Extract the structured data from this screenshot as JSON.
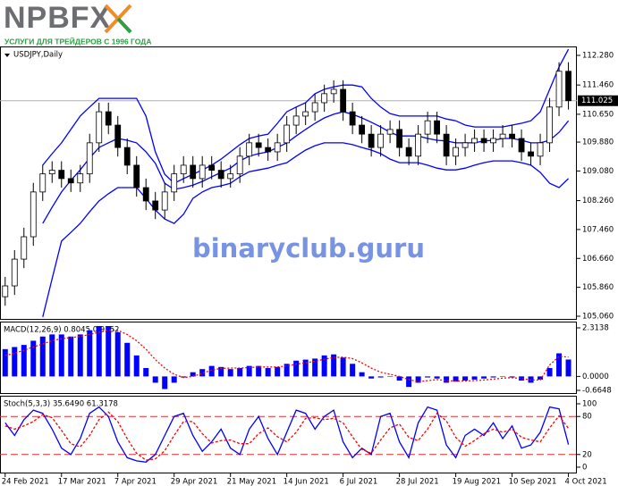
{
  "header": {
    "logo": "NPBFX",
    "tagline": "УСЛУГИ ДЛЯ ТРЕЙДЕРОВ С 1996 ГОДА"
  },
  "watermark": "binaryclub.guru",
  "chart_data": [
    {
      "type": "candlestick",
      "title": "USDJPY,Daily",
      "open": [
        105.6,
        105.9,
        106.64,
        107.26,
        108.5,
        109.0,
        109.1,
        108.87,
        108.75,
        109.0,
        109.86,
        110.72,
        110.35,
        109.73,
        109.24,
        108.62,
        108.25,
        108.0,
        108.5,
        109.0,
        109.24,
        108.87,
        109.24,
        109.1,
        108.87,
        109.0,
        109.49,
        109.86,
        109.73,
        109.61,
        109.86,
        110.35,
        110.6,
        110.72,
        110.97,
        111.22,
        111.34,
        110.72,
        110.35,
        110.1,
        109.73,
        110.1,
        110.23,
        109.73,
        109.49,
        110.1,
        110.47,
        110.1,
        109.49,
        109.73,
        109.86,
        109.98,
        109.86,
        109.98,
        110.1,
        109.98,
        109.61,
        109.49,
        109.86,
        110.85,
        111.84
      ],
      "high": [
        106.15,
        106.89,
        107.51,
        108.75,
        109.25,
        109.35,
        109.35,
        109.12,
        109.25,
        110.11,
        110.97,
        110.97,
        110.6,
        109.98,
        109.49,
        108.87,
        108.5,
        108.75,
        109.25,
        109.49,
        109.49,
        109.49,
        109.49,
        109.35,
        109.25,
        109.74,
        110.11,
        110.11,
        109.98,
        110.11,
        110.6,
        110.85,
        110.97,
        111.22,
        111.47,
        111.59,
        111.59,
        110.97,
        110.6,
        110.35,
        110.35,
        110.48,
        110.48,
        109.98,
        110.35,
        110.72,
        110.72,
        110.35,
        109.98,
        110.11,
        110.23,
        110.23,
        110.23,
        110.35,
        110.35,
        110.23,
        109.86,
        110.11,
        111.1,
        112.09,
        112.09
      ],
      "low": [
        105.35,
        105.65,
        106.39,
        107.01,
        108.25,
        108.75,
        108.62,
        108.5,
        108.5,
        108.75,
        109.61,
        110.1,
        109.48,
        108.99,
        108.37,
        108.0,
        107.75,
        107.75,
        108.25,
        108.75,
        108.62,
        108.62,
        108.85,
        108.62,
        108.62,
        108.75,
        109.24,
        109.48,
        109.36,
        109.36,
        109.61,
        110.1,
        110.35,
        110.47,
        110.72,
        110.97,
        110.47,
        110.1,
        109.85,
        109.48,
        109.48,
        109.85,
        109.48,
        109.24,
        109.24,
        109.85,
        109.85,
        109.24,
        109.24,
        109.48,
        109.61,
        109.61,
        109.61,
        109.73,
        109.73,
        109.36,
        109.24,
        109.24,
        109.61,
        110.6,
        110.78
      ],
      "close": [
        105.9,
        106.64,
        107.26,
        108.5,
        109.0,
        109.1,
        108.87,
        108.75,
        109.0,
        109.86,
        110.72,
        110.35,
        109.73,
        109.24,
        108.62,
        108.25,
        108.0,
        108.5,
        109.0,
        109.24,
        108.87,
        109.24,
        109.1,
        108.87,
        109.0,
        109.49,
        109.86,
        109.73,
        109.61,
        109.86,
        110.35,
        110.6,
        110.72,
        110.97,
        111.22,
        111.34,
        110.72,
        110.35,
        110.1,
        109.73,
        110.1,
        110.23,
        109.73,
        109.49,
        110.1,
        110.47,
        110.1,
        109.49,
        109.73,
        109.86,
        109.98,
        109.86,
        109.98,
        110.1,
        109.98,
        109.61,
        109.49,
        109.86,
        110.85,
        111.84,
        111.025
      ],
      "color": "#000000",
      "series": [
        {
          "color": "#0000ff",
          "values": [
            null,
            null,
            null,
            null,
            109.24,
            109.56,
            109.86,
            110.23,
            110.6,
            110.85,
            111.09,
            111.09,
            111.09,
            111.09,
            111.09,
            110.6,
            109.61,
            108.99,
            108.74,
            108.87,
            108.99,
            109.11,
            109.24,
            109.41,
            109.61,
            109.81,
            109.98,
            110.05,
            110.1,
            110.4,
            110.72,
            110.85,
            110.97,
            111.22,
            111.34,
            111.41,
            111.46,
            111.46,
            111.41,
            111.09,
            110.85,
            110.67,
            110.6,
            110.6,
            110.6,
            110.6,
            110.6,
            110.52,
            110.47,
            110.35,
            110.3,
            110.3,
            110.3,
            110.3,
            110.35,
            110.4,
            110.47,
            110.72,
            111.34,
            111.96,
            112.45
          ]
        },
        {
          "color": "#0000ff",
          "values": [
            null,
            null,
            null,
            null,
            107.63,
            108.08,
            108.5,
            108.82,
            109.11,
            109.44,
            109.73,
            109.86,
            109.98,
            109.93,
            109.86,
            109.61,
            109.29,
            108.74,
            108.57,
            108.62,
            108.69,
            108.79,
            108.92,
            109.04,
            109.16,
            109.36,
            109.49,
            109.56,
            109.61,
            109.73,
            109.86,
            110.05,
            110.23,
            110.4,
            110.55,
            110.65,
            110.72,
            110.65,
            110.55,
            110.43,
            110.3,
            110.15,
            110.05,
            110.05,
            110.05,
            109.98,
            109.93,
            109.91,
            109.86,
            109.86,
            109.86,
            109.91,
            109.93,
            109.98,
            109.98,
            109.93,
            109.86,
            109.86,
            109.93,
            110.15,
            110.47
          ]
        },
        {
          "color": "#0000ff",
          "values": [
            null,
            null,
            null,
            null,
            105.04,
            106.1,
            107.14,
            107.38,
            107.63,
            107.95,
            108.25,
            108.45,
            108.62,
            108.62,
            108.62,
            108.32,
            108.0,
            107.75,
            107.63,
            107.88,
            108.32,
            108.5,
            108.62,
            108.67,
            108.74,
            108.92,
            109.06,
            109.11,
            109.16,
            109.24,
            109.31,
            109.49,
            109.66,
            109.78,
            109.86,
            109.86,
            109.86,
            109.81,
            109.73,
            109.66,
            109.56,
            109.41,
            109.31,
            109.31,
            109.31,
            109.24,
            109.16,
            109.11,
            109.11,
            109.16,
            109.24,
            109.31,
            109.36,
            109.36,
            109.36,
            109.31,
            109.24,
            109.04,
            108.74,
            108.62,
            108.87
          ]
        }
      ],
      "current_price": 111.025,
      "ylim": [
        104.961,
        112.527
      ],
      "yticks": [
        {
          "value": 112.28,
          "label": "112.280"
        },
        {
          "value": 111.46,
          "label": "111.460"
        },
        {
          "value": 110.65,
          "label": "110.650"
        },
        {
          "value": 109.88,
          "label": "109.880"
        },
        {
          "value": 109.08,
          "label": "109.080"
        },
        {
          "value": 108.26,
          "label": "108.260"
        },
        {
          "value": 107.46,
          "label": "107.460"
        },
        {
          "value": 106.66,
          "label": "106.660"
        },
        {
          "value": 105.86,
          "label": "105.860"
        },
        {
          "value": 105.06,
          "label": "105.060"
        }
      ],
      "xlim": [
        -0.55,
        60.9
      ],
      "xticks": [
        {
          "value": 0,
          "label": "24 Feb 2021"
        },
        {
          "value": 6,
          "label": "17 Mar 2021"
        },
        {
          "value": 12,
          "label": "7 Apr 2021"
        },
        {
          "value": 18,
          "label": "29 Apr 2021"
        },
        {
          "value": 24,
          "label": "21 May 2021"
        },
        {
          "value": 30,
          "label": "14 Jun 2021"
        },
        {
          "value": 36,
          "label": "6 Jul 2021"
        },
        {
          "value": 42,
          "label": "28 Jul 2021"
        },
        {
          "value": 48,
          "label": "19 Aug 2021"
        },
        {
          "value": 54,
          "label": "10 Sep 2021"
        },
        {
          "value": 60,
          "label": "4 Oct 2021"
        }
      ]
    },
    {
      "type": "macd",
      "title": "MACD(12,26,9) 0.8045 0.9252",
      "values": [
        1.3,
        1.4,
        1.5,
        1.7,
        1.9,
        2.0,
        2.0,
        1.9,
        2.0,
        2.2,
        2.4,
        2.4,
        2.1,
        1.6,
        1.0,
        0.4,
        -0.3,
        -0.6,
        -0.3,
        -0.05,
        0.2,
        0.35,
        0.5,
        0.45,
        0.35,
        0.4,
        0.5,
        0.5,
        0.4,
        0.45,
        0.6,
        0.75,
        0.8,
        0.85,
        1.0,
        1.05,
        0.9,
        0.6,
        0.2,
        -0.1,
        -0.05,
        0.0,
        -0.2,
        -0.5,
        -0.3,
        -0.05,
        -0.1,
        -0.3,
        -0.25,
        -0.2,
        -0.15,
        -0.1,
        -0.05,
        0.0,
        -0.05,
        -0.2,
        -0.3,
        -0.15,
        0.4,
        1.1,
        0.8045
      ],
      "color": "#0000ff",
      "signal": {
        "color": "#ff0000",
        "values": [
          1.0,
          1.1,
          1.25,
          1.4,
          1.55,
          1.7,
          1.8,
          1.85,
          1.9,
          2.0,
          2.1,
          2.2,
          2.2,
          2.0,
          1.7,
          1.3,
          0.8,
          0.4,
          0.1,
          -0.05,
          0.0,
          0.15,
          0.3,
          0.38,
          0.4,
          0.4,
          0.42,
          0.45,
          0.45,
          0.45,
          0.5,
          0.58,
          0.65,
          0.72,
          0.82,
          0.9,
          0.92,
          0.85,
          0.65,
          0.4,
          0.2,
          0.1,
          0.0,
          -0.15,
          -0.25,
          -0.2,
          -0.15,
          -0.2,
          -0.22,
          -0.22,
          -0.2,
          -0.17,
          -0.13,
          -0.08,
          -0.06,
          -0.1,
          -0.17,
          -0.17,
          0.55,
          0.95,
          0.9252
        ]
      },
      "ylim": [
        -0.835,
        2.612
      ],
      "yticks": [
        2.3138,
        {
          "value": 0,
          "label": "0.0000"
        },
        -0.6648
      ]
    },
    {
      "type": "stochastic",
      "title": "Stoch(5,3,3) 35.6490 61.3178",
      "series": [
        {
          "color": "#0000ff",
          "values": [
            70,
            50,
            75,
            90,
            85,
            60,
            30,
            20,
            45,
            85,
            95,
            80,
            40,
            15,
            10,
            8,
            20,
            50,
            80,
            85,
            50,
            25,
            40,
            60,
            30,
            20,
            60,
            80,
            45,
            20,
            55,
            90,
            85,
            60,
            80,
            90,
            40,
            15,
            30,
            20,
            80,
            85,
            40,
            15,
            70,
            95,
            90,
            35,
            15,
            50,
            60,
            50,
            70,
            45,
            65,
            30,
            35,
            55,
            95,
            92,
            35.649
          ]
        },
        {
          "color": "#ff0000",
          "values": [
            65,
            60,
            65,
            72,
            83,
            78,
            58,
            37,
            32,
            50,
            75,
            87,
            72,
            45,
            22,
            11,
            13,
            26,
            50,
            72,
            72,
            53,
            38,
            42,
            43,
            37,
            37,
            53,
            62,
            48,
            40,
            55,
            77,
            78,
            75,
            77,
            70,
            48,
            28,
            22,
            43,
            62,
            68,
            47,
            42,
            60,
            85,
            73,
            47,
            33,
            42,
            53,
            60,
            55,
            60,
            47,
            43,
            40,
            62,
            81,
            61.3178
          ]
        }
      ],
      "levels": [
        80,
        20
      ],
      "level_color": "#e03030",
      "ylim": [
        -9.9,
        112.7
      ],
      "yticks": [
        100,
        80,
        20,
        0
      ]
    }
  ]
}
